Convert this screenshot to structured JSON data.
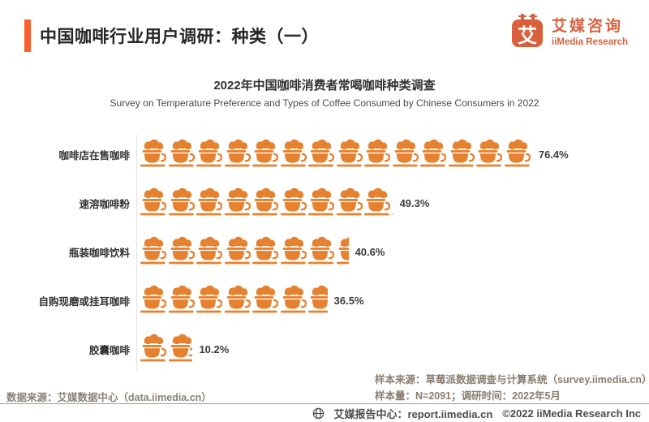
{
  "page": {
    "title": "中国咖啡行业用户调研：种类（一）"
  },
  "brand": {
    "logo_char": "艾",
    "name_cn": "艾媒咨询",
    "name_en": "iiMedia Research",
    "accent_color": "#F8602F",
    "logo_color": "#D8603C"
  },
  "icons": {
    "bar_icon": "coffee-cup-icon",
    "footer_icon": "globe-icon"
  },
  "chart_data": {
    "type": "bar",
    "variant": "pictogram-coffee-cups",
    "title": "2022年中国咖啡消费者常喝咖啡种类调查",
    "subtitle": "Survey on Temperature Preference and Types of Coffee Consumed by Chinese Consumers in 2022",
    "unit": "%",
    "xlim": [
      0,
      100
    ],
    "icon_color": "#E5812F",
    "categories": [
      "咖啡店在售咖啡",
      "速溶咖啡粉",
      "瓶装咖啡饮料",
      "自购现磨或挂耳咖啡",
      "胶囊咖啡"
    ],
    "values": [
      76.4,
      49.3,
      40.6,
      36.5,
      10.2
    ],
    "value_labels": [
      "76.4%",
      "49.3%",
      "40.6%",
      "36.5%",
      "10.2%"
    ],
    "legend": "none",
    "grid": "off"
  },
  "notes": {
    "sample_source": "样本来源：草莓派数据调查与计算系统（survey.iimedia.cn）",
    "sample_size": "样本量：N=2091；调研时间：2022年5月",
    "data_source": "数据来源：艾媒数据中心（data.iimedia.cn）"
  },
  "footer": {
    "report_center": "艾媒报告中心：report.iimedia.cn",
    "copyright": "©2022  iiMedia Research  Inc"
  }
}
